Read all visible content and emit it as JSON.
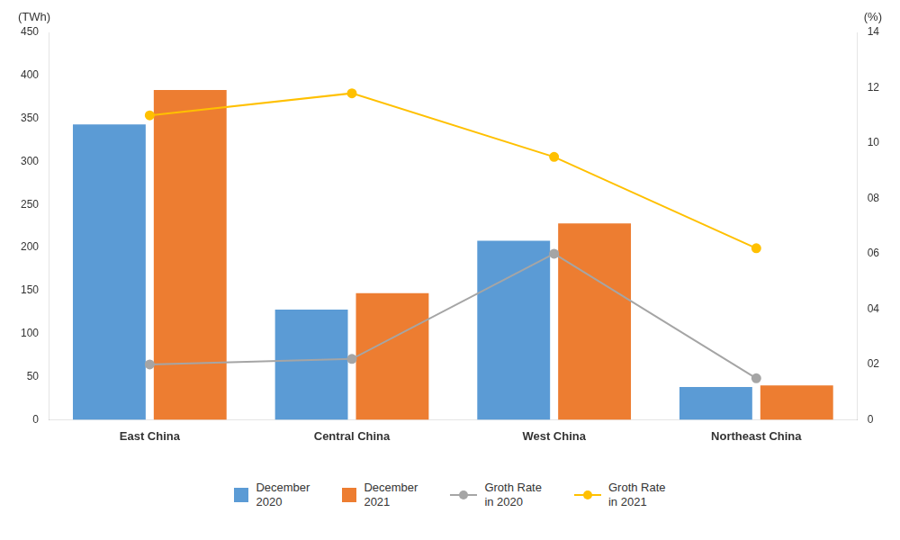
{
  "chart_data": {
    "type": "bar",
    "categories": [
      "East China",
      "Central China",
      "West China",
      "Northeast China"
    ],
    "series": [
      {
        "name": "December\n2020",
        "type": "bar",
        "color": "#5B9BD5",
        "values": [
          343,
          128,
          208,
          38
        ]
      },
      {
        "name": "December\n2021",
        "type": "bar",
        "color": "#ED7D31",
        "values": [
          383,
          147,
          228,
          40
        ]
      },
      {
        "name": "Groth Rate\nin 2020",
        "type": "line",
        "color": "#A5A5A5",
        "marker": "circle",
        "axis": "y2",
        "values": [
          2.0,
          2.2,
          6.0,
          1.5
        ]
      },
      {
        "name": "Groth Rate\nin 2021",
        "type": "line",
        "color": "#FFC000",
        "marker": "circle",
        "axis": "y2",
        "values": [
          11.0,
          11.8,
          9.5,
          6.2
        ]
      }
    ],
    "ylabel": "(TWh)",
    "y2label": "(%)",
    "ylim": [
      0,
      450
    ],
    "yticks": [
      0,
      50,
      100,
      150,
      200,
      250,
      300,
      350,
      400,
      450
    ],
    "y2lim": [
      0,
      14
    ],
    "y2ticks": [
      0,
      {
        "value": 2,
        "label": "02"
      },
      {
        "value": 4,
        "label": "04"
      },
      {
        "value": 6,
        "label": "06"
      },
      {
        "value": 8,
        "label": "08"
      },
      10,
      12,
      14
    ],
    "grid": false,
    "legend": "bottom"
  }
}
